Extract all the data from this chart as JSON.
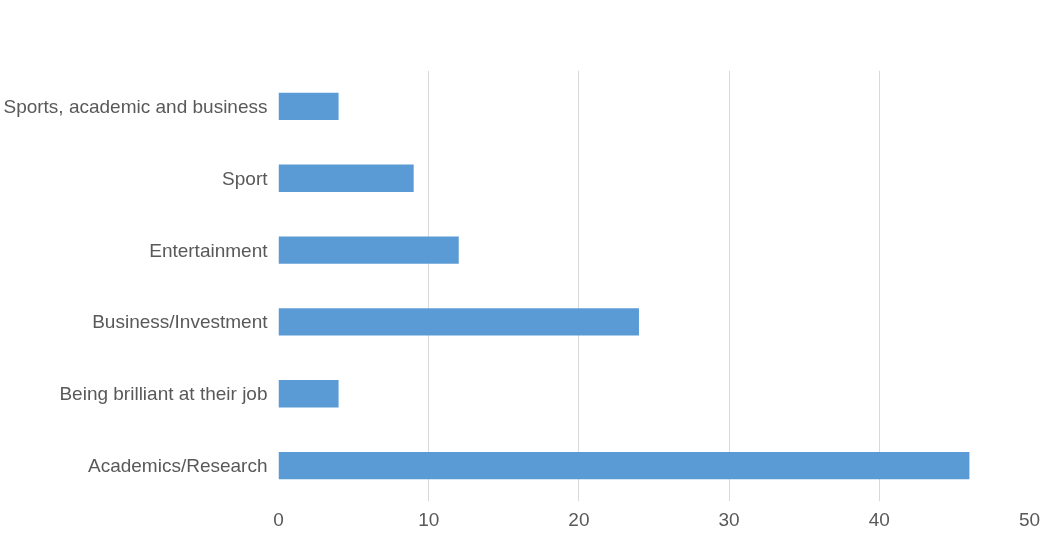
{
  "chart_data": {
    "type": "bar",
    "orientation": "horizontal",
    "categories": [
      "Sports, academic and business",
      "Sport",
      "Entertainment",
      "Business/Investment",
      "Being brilliant at their job",
      "Academics/Research"
    ],
    "values": [
      4,
      9,
      12,
      24,
      4,
      46
    ],
    "color": "#5b9bd5",
    "xlim": [
      0,
      50
    ],
    "xticks": [
      0,
      10,
      20,
      30,
      40,
      50
    ],
    "grid": "x"
  }
}
